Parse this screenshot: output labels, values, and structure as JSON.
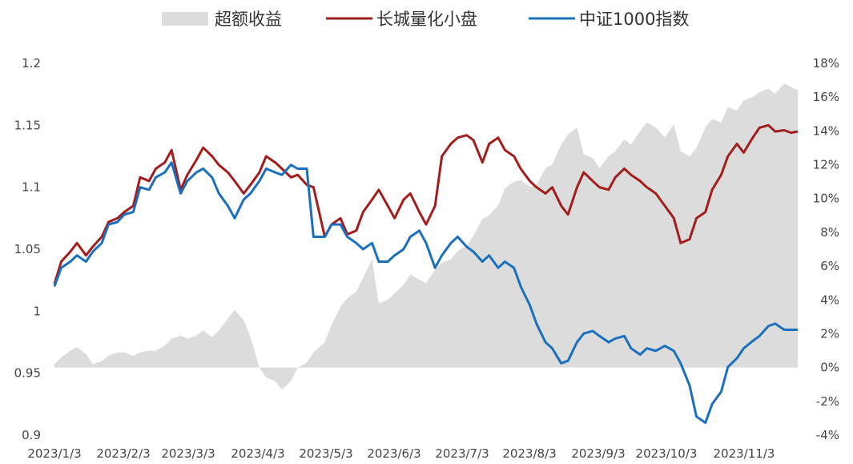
{
  "chart_data": {
    "type": "line",
    "title": "",
    "xlabel": "",
    "ylabel_left": "",
    "ylabel_right": "",
    "legend_position": "top-center",
    "grid": false,
    "left_axis": {
      "range": [
        0.9,
        1.2
      ],
      "ticks": [
        1.2,
        1.15,
        1.1,
        1.05,
        1.0,
        0.95,
        0.9
      ],
      "tick_labels": [
        "1.2",
        "1.15",
        "1.1",
        "1.05",
        "1",
        "0.95",
        "0.9"
      ]
    },
    "right_axis": {
      "range": [
        -4,
        18
      ],
      "ticks": [
        18,
        16,
        14,
        12,
        10,
        8,
        6,
        4,
        2,
        0,
        -2,
        -4
      ],
      "tick_labels": [
        "18%",
        "16%",
        "14%",
        "12%",
        "10%",
        "8%",
        "6%",
        "4%",
        "2%",
        "0%",
        "-2%",
        "-4%"
      ]
    },
    "x_ticks": [
      "2023/1/3",
      "2023/2/3",
      "2023/3/3",
      "2023/4/3",
      "2023/5/3",
      "2023/6/3",
      "2023/7/3",
      "2023/8/3",
      "2023/9/3",
      "2023/10/3",
      "2023/11/3"
    ],
    "x_range": [
      "2023-01-03",
      "2023-11-29"
    ],
    "series": [
      {
        "name": "超额收益",
        "kind": "area",
        "axis": "right",
        "color": "#dcdcdc",
        "dates": [
          "2023-01-03",
          "2023-01-06",
          "2023-01-10",
          "2023-01-13",
          "2023-01-17",
          "2023-01-20",
          "2023-01-24",
          "2023-01-27",
          "2023-01-31",
          "2023-02-03",
          "2023-02-07",
          "2023-02-10",
          "2023-02-14",
          "2023-02-17",
          "2023-02-21",
          "2023-02-24",
          "2023-02-28",
          "2023-03-03",
          "2023-03-07",
          "2023-03-10",
          "2023-03-14",
          "2023-03-17",
          "2023-03-21",
          "2023-03-24",
          "2023-03-28",
          "2023-03-31",
          "2023-04-04",
          "2023-04-07",
          "2023-04-11",
          "2023-04-14",
          "2023-04-18",
          "2023-04-21",
          "2023-04-25",
          "2023-04-28",
          "2023-05-03",
          "2023-05-06",
          "2023-05-10",
          "2023-05-13",
          "2023-05-17",
          "2023-05-20",
          "2023-05-24",
          "2023-05-27",
          "2023-05-31",
          "2023-06-03",
          "2023-06-07",
          "2023-06-10",
          "2023-06-14",
          "2023-06-17",
          "2023-06-21",
          "2023-06-24",
          "2023-06-28",
          "2023-07-01",
          "2023-07-05",
          "2023-07-08",
          "2023-07-12",
          "2023-07-15",
          "2023-07-19",
          "2023-07-22",
          "2023-07-26",
          "2023-07-29",
          "2023-08-02",
          "2023-08-05",
          "2023-08-09",
          "2023-08-12",
          "2023-08-16",
          "2023-08-19",
          "2023-08-23",
          "2023-08-26",
          "2023-08-30",
          "2023-09-02",
          "2023-09-06",
          "2023-09-09",
          "2023-09-13",
          "2023-09-16",
          "2023-09-20",
          "2023-09-23",
          "2023-09-27",
          "2023-10-01",
          "2023-10-05",
          "2023-10-08",
          "2023-10-12",
          "2023-10-15",
          "2023-10-19",
          "2023-10-22",
          "2023-10-26",
          "2023-10-29",
          "2023-11-02",
          "2023-11-05",
          "2023-11-09",
          "2023-11-12",
          "2023-11-16",
          "2023-11-19",
          "2023-11-23",
          "2023-11-26",
          "2023-11-29"
        ],
        "values": [
          0.2,
          0.6,
          1.0,
          1.2,
          0.8,
          0.2,
          0.4,
          0.7,
          0.9,
          0.9,
          0.7,
          0.9,
          1.0,
          1.0,
          1.3,
          1.7,
          1.9,
          1.7,
          1.9,
          2.2,
          1.8,
          2.2,
          2.9,
          3.4,
          2.8,
          1.8,
          0.0,
          -0.6,
          -0.8,
          -1.3,
          -0.8,
          0.0,
          0.3,
          0.9,
          1.5,
          2.5,
          3.6,
          4.1,
          4.5,
          5.3,
          6.4,
          3.8,
          4.0,
          4.4,
          4.9,
          5.5,
          5.2,
          5.0,
          5.8,
          6.2,
          6.4,
          6.9,
          7.2,
          7.8,
          8.8,
          9.0,
          9.6,
          10.6,
          11.0,
          11.1,
          10.7,
          10.8,
          11.8,
          12.0,
          13.2,
          13.8,
          14.2,
          12.6,
          12.4,
          11.8,
          12.5,
          12.8,
          13.5,
          13.2,
          14.0,
          14.5,
          14.2,
          13.6,
          14.4,
          12.8,
          12.5,
          13.0,
          14.2,
          14.7,
          14.5,
          15.4,
          15.2,
          15.8,
          16.0,
          16.3,
          16.5,
          16.2,
          16.8,
          16.6,
          16.4
        ]
      },
      {
        "name": "长城量化小盘",
        "kind": "line",
        "axis": "left",
        "color": "#a31d1d",
        "dates": [
          "2023-01-03",
          "2023-01-06",
          "2023-01-10",
          "2023-01-13",
          "2023-01-17",
          "2023-01-20",
          "2023-01-24",
          "2023-01-27",
          "2023-01-31",
          "2023-02-03",
          "2023-02-07",
          "2023-02-10",
          "2023-02-14",
          "2023-02-17",
          "2023-02-21",
          "2023-02-24",
          "2023-02-28",
          "2023-03-03",
          "2023-03-07",
          "2023-03-10",
          "2023-03-14",
          "2023-03-17",
          "2023-03-21",
          "2023-03-24",
          "2023-03-28",
          "2023-03-31",
          "2023-04-04",
          "2023-04-07",
          "2023-04-11",
          "2023-04-14",
          "2023-04-18",
          "2023-04-21",
          "2023-04-25",
          "2023-04-28",
          "2023-05-03",
          "2023-05-06",
          "2023-05-10",
          "2023-05-13",
          "2023-05-17",
          "2023-05-20",
          "2023-05-24",
          "2023-05-27",
          "2023-05-31",
          "2023-06-03",
          "2023-06-07",
          "2023-06-10",
          "2023-06-14",
          "2023-06-17",
          "2023-06-21",
          "2023-06-24",
          "2023-06-28",
          "2023-07-01",
          "2023-07-05",
          "2023-07-08",
          "2023-07-12",
          "2023-07-15",
          "2023-07-19",
          "2023-07-22",
          "2023-07-26",
          "2023-07-29",
          "2023-08-02",
          "2023-08-05",
          "2023-08-09",
          "2023-08-12",
          "2023-08-16",
          "2023-08-19",
          "2023-08-23",
          "2023-08-26",
          "2023-08-30",
          "2023-09-02",
          "2023-09-06",
          "2023-09-09",
          "2023-09-13",
          "2023-09-16",
          "2023-09-20",
          "2023-09-23",
          "2023-09-27",
          "2023-10-01",
          "2023-10-05",
          "2023-10-08",
          "2023-10-12",
          "2023-10-15",
          "2023-10-19",
          "2023-10-22",
          "2023-10-26",
          "2023-10-29",
          "2023-11-02",
          "2023-11-05",
          "2023-11-09",
          "2023-11-12",
          "2023-11-16",
          "2023-11-19",
          "2023-11-23",
          "2023-11-26",
          "2023-11-29"
        ],
        "values": [
          1.022,
          1.04,
          1.048,
          1.055,
          1.045,
          1.052,
          1.06,
          1.072,
          1.075,
          1.08,
          1.085,
          1.108,
          1.105,
          1.115,
          1.12,
          1.13,
          1.098,
          1.11,
          1.122,
          1.132,
          1.125,
          1.118,
          1.112,
          1.105,
          1.095,
          1.102,
          1.112,
          1.125,
          1.12,
          1.115,
          1.108,
          1.11,
          1.102,
          1.1,
          1.06,
          1.07,
          1.075,
          1.062,
          1.065,
          1.08,
          1.09,
          1.098,
          1.085,
          1.075,
          1.09,
          1.095,
          1.08,
          1.07,
          1.085,
          1.125,
          1.135,
          1.14,
          1.142,
          1.138,
          1.12,
          1.135,
          1.14,
          1.13,
          1.125,
          1.115,
          1.105,
          1.1,
          1.095,
          1.1,
          1.085,
          1.078,
          1.1,
          1.112,
          1.105,
          1.1,
          1.098,
          1.108,
          1.115,
          1.11,
          1.105,
          1.1,
          1.095,
          1.085,
          1.075,
          1.055,
          1.058,
          1.075,
          1.08,
          1.098,
          1.11,
          1.125,
          1.135,
          1.128,
          1.14,
          1.148,
          1.15,
          1.145,
          1.146,
          1.144,
          1.145
        ]
      },
      {
        "name": "中证1000指数",
        "kind": "line",
        "axis": "left",
        "color": "#1a6fbf",
        "dates": [
          "2023-01-03",
          "2023-01-06",
          "2023-01-10",
          "2023-01-13",
          "2023-01-17",
          "2023-01-20",
          "2023-01-24",
          "2023-01-27",
          "2023-01-31",
          "2023-02-03",
          "2023-02-07",
          "2023-02-10",
          "2023-02-14",
          "2023-02-17",
          "2023-02-21",
          "2023-02-24",
          "2023-02-28",
          "2023-03-03",
          "2023-03-07",
          "2023-03-10",
          "2023-03-14",
          "2023-03-17",
          "2023-03-21",
          "2023-03-24",
          "2023-03-28",
          "2023-03-31",
          "2023-04-04",
          "2023-04-07",
          "2023-04-11",
          "2023-04-14",
          "2023-04-18",
          "2023-04-21",
          "2023-04-25",
          "2023-04-28",
          "2023-05-03",
          "2023-05-06",
          "2023-05-10",
          "2023-05-13",
          "2023-05-17",
          "2023-05-20",
          "2023-05-24",
          "2023-05-27",
          "2023-05-31",
          "2023-06-03",
          "2023-06-07",
          "2023-06-10",
          "2023-06-14",
          "2023-06-17",
          "2023-06-21",
          "2023-06-24",
          "2023-06-28",
          "2023-07-01",
          "2023-07-05",
          "2023-07-08",
          "2023-07-12",
          "2023-07-15",
          "2023-07-19",
          "2023-07-22",
          "2023-07-26",
          "2023-07-29",
          "2023-08-02",
          "2023-08-05",
          "2023-08-09",
          "2023-08-12",
          "2023-08-16",
          "2023-08-19",
          "2023-08-23",
          "2023-08-26",
          "2023-08-30",
          "2023-09-02",
          "2023-09-06",
          "2023-09-09",
          "2023-09-13",
          "2023-09-16",
          "2023-09-20",
          "2023-09-23",
          "2023-09-27",
          "2023-10-01",
          "2023-10-05",
          "2023-10-08",
          "2023-10-12",
          "2023-10-15",
          "2023-10-19",
          "2023-10-22",
          "2023-10-26",
          "2023-10-29",
          "2023-11-02",
          "2023-11-05",
          "2023-11-09",
          "2023-11-12",
          "2023-11-16",
          "2023-11-19",
          "2023-11-23",
          "2023-11-26",
          "2023-11-29"
        ],
        "values": [
          1.02,
          1.035,
          1.04,
          1.045,
          1.04,
          1.048,
          1.055,
          1.07,
          1.072,
          1.078,
          1.08,
          1.1,
          1.098,
          1.108,
          1.112,
          1.12,
          1.095,
          1.105,
          1.112,
          1.115,
          1.108,
          1.095,
          1.085,
          1.075,
          1.09,
          1.095,
          1.105,
          1.115,
          1.112,
          1.11,
          1.118,
          1.115,
          1.115,
          1.06,
          1.06,
          1.07,
          1.07,
          1.06,
          1.055,
          1.05,
          1.055,
          1.04,
          1.04,
          1.045,
          1.05,
          1.06,
          1.065,
          1.055,
          1.035,
          1.045,
          1.055,
          1.06,
          1.052,
          1.048,
          1.04,
          1.045,
          1.035,
          1.04,
          1.035,
          1.02,
          1.005,
          0.99,
          0.975,
          0.97,
          0.958,
          0.96,
          0.975,
          0.982,
          0.984,
          0.98,
          0.975,
          0.978,
          0.98,
          0.97,
          0.965,
          0.97,
          0.968,
          0.972,
          0.968,
          0.958,
          0.94,
          0.915,
          0.91,
          0.925,
          0.935,
          0.955,
          0.962,
          0.97,
          0.976,
          0.98,
          0.988,
          0.99,
          0.985,
          0.985,
          0.985
        ]
      }
    ]
  }
}
